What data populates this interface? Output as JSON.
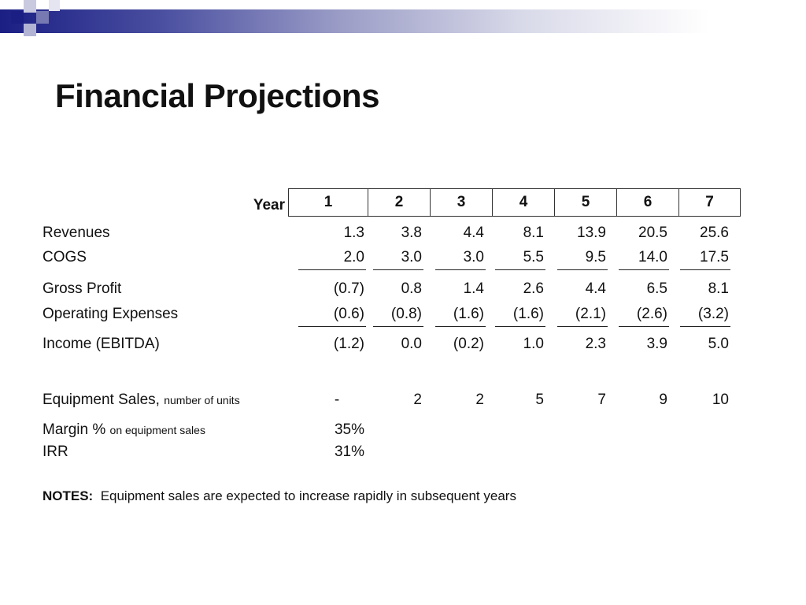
{
  "slide": {
    "title": "Financial Projections",
    "year_label": "Year",
    "years": [
      "1",
      "2",
      "3",
      "4",
      "5",
      "6",
      "7"
    ]
  },
  "table": {
    "rows": [
      {
        "label": "Revenues",
        "sublabel": "",
        "values": [
          "1.3",
          "3.8",
          "4.4",
          "8.1",
          "13.9",
          "20.5",
          "25.6"
        ]
      },
      {
        "label": "COGS",
        "sublabel": "",
        "values": [
          "2.0",
          "3.0",
          "3.0",
          "5.5",
          "9.5",
          "14.0",
          "17.5"
        ]
      },
      {
        "label": "Gross Profit",
        "sublabel": "",
        "values": [
          "(0.7)",
          "0.8",
          "1.4",
          "2.6",
          "4.4",
          "6.5",
          "8.1"
        ]
      },
      {
        "label": "Operating Expenses",
        "sublabel": "",
        "values": [
          "(0.6)",
          "(0.8)",
          "(1.6)",
          "(1.6)",
          "(2.1)",
          "(2.6)",
          "(3.2)"
        ]
      },
      {
        "label": "Income (EBITDA)",
        "sublabel": "",
        "values": [
          "(1.2)",
          "0.0",
          "(0.2)",
          "1.0",
          "2.3",
          "3.9",
          "5.0"
        ]
      },
      {
        "label": "Equipment Sales,",
        "sublabel": "number of units",
        "values": [
          "-",
          "2",
          "2",
          "5",
          "7",
          "9",
          "10"
        ]
      },
      {
        "label": "Margin %",
        "sublabel": "on equipment sales",
        "values": [
          "35%"
        ]
      },
      {
        "label": "IRR",
        "sublabel": "",
        "values": [
          "31%"
        ]
      }
    ]
  },
  "notes": {
    "label": "NOTES:",
    "text": "Equipment sales are expected to increase rapidly in subsequent years"
  },
  "colors": {
    "accent_dark": "#1b1f84",
    "accent_light": "#9a9cc6",
    "text": "#111111"
  }
}
